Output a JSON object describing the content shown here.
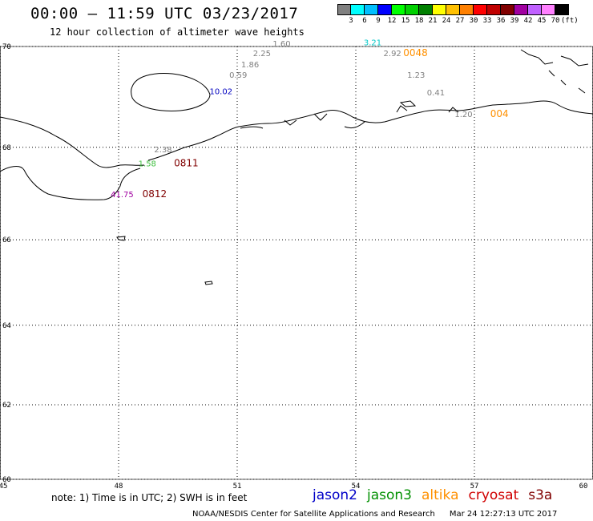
{
  "header": {
    "title": "00:00 – 11:59 UTC 03/23/2017",
    "subtitle": "12 hour collection of altimeter wave heights"
  },
  "scale": {
    "colors": [
      "#808080",
      "#00ffff",
      "#00bfff",
      "#0000ff",
      "#00ff00",
      "#00d000",
      "#008000",
      "#ffff00",
      "#ffc000",
      "#ff8000",
      "#ff0000",
      "#c00000",
      "#800000",
      "#a000a0",
      "#c060ff",
      "#ff80ff",
      "#000000"
    ],
    "labels": [
      "3",
      "6",
      "9",
      "12",
      "15",
      "18",
      "21",
      "24",
      "27",
      "30",
      "33",
      "36",
      "39",
      "42",
      "45",
      "70",
      "(ft)"
    ]
  },
  "map": {
    "lon_range": [
      45,
      60
    ],
    "lat_range": [
      60,
      70
    ],
    "lon_ticks": [
      "45",
      "48",
      "51",
      "54",
      "57",
      "60"
    ],
    "lat_ticks": [
      "70",
      "68",
      "66",
      "64",
      "62",
      "60"
    ],
    "coast_color": "#000000",
    "grid_color": "#000000",
    "observations": [
      {
        "value": "1.60",
        "lon": 51.9,
        "lat": 70.0,
        "color": "#808080"
      },
      {
        "value": "2.25",
        "lon": 51.4,
        "lat": 69.82,
        "color": "#808080"
      },
      {
        "value": "1.86",
        "lon": 51.1,
        "lat": 69.6,
        "color": "#808080"
      },
      {
        "value": "0.59",
        "lon": 50.8,
        "lat": 69.4,
        "color": "#808080"
      },
      {
        "value": "10.02",
        "lon": 50.3,
        "lat": 69.08,
        "color": "#0000c0"
      },
      {
        "value": "3.21",
        "lon": 54.2,
        "lat": 70.02,
        "color": "#00c8c8"
      },
      {
        "value": "2.92",
        "lon": 54.7,
        "lat": 69.82,
        "color": "#808080"
      },
      {
        "value": "1.23",
        "lon": 55.3,
        "lat": 69.4,
        "color": "#808080"
      },
      {
        "value": "0.41",
        "lon": 55.8,
        "lat": 69.05,
        "color": "#808080"
      },
      {
        "value": "1.20",
        "lon": 56.5,
        "lat": 68.62,
        "color": "#808080"
      },
      {
        "value": "2.38",
        "lon": 48.9,
        "lat": 67.9,
        "color": "#808080"
      },
      {
        "value": "1.58",
        "lon": 48.5,
        "lat": 67.6,
        "color": "#40c040"
      },
      {
        "value": "41.75",
        "lon": 47.8,
        "lat": 66.94,
        "color": "#a000a0"
      }
    ],
    "time_labels": [
      {
        "text": "0048",
        "lon": 55.2,
        "lat": 69.82,
        "color": "#ff9000"
      },
      {
        "text": "004",
        "lon": 57.4,
        "lat": 68.62,
        "color": "#ff9000"
      },
      {
        "text": "0811",
        "lon": 49.4,
        "lat": 67.6,
        "color": "#800000"
      },
      {
        "text": "0812",
        "lon": 48.6,
        "lat": 66.94,
        "color": "#800000"
      }
    ]
  },
  "footer": {
    "note": "note: 1) Time is in UTC; 2) SWH is in feet",
    "satellites": [
      {
        "name": "jason2",
        "color": "#0000c8"
      },
      {
        "name": "jason3",
        "color": "#009000"
      },
      {
        "name": "altika",
        "color": "#ff9000"
      },
      {
        "name": "cryosat",
        "color": "#d00000"
      },
      {
        "name": "s3a",
        "color": "#800000"
      }
    ],
    "credit": "NOAA/NESDIS Center for Satellite Applications and Research",
    "timestamp": "Mar 24 12:27:13 UTC 2017"
  }
}
